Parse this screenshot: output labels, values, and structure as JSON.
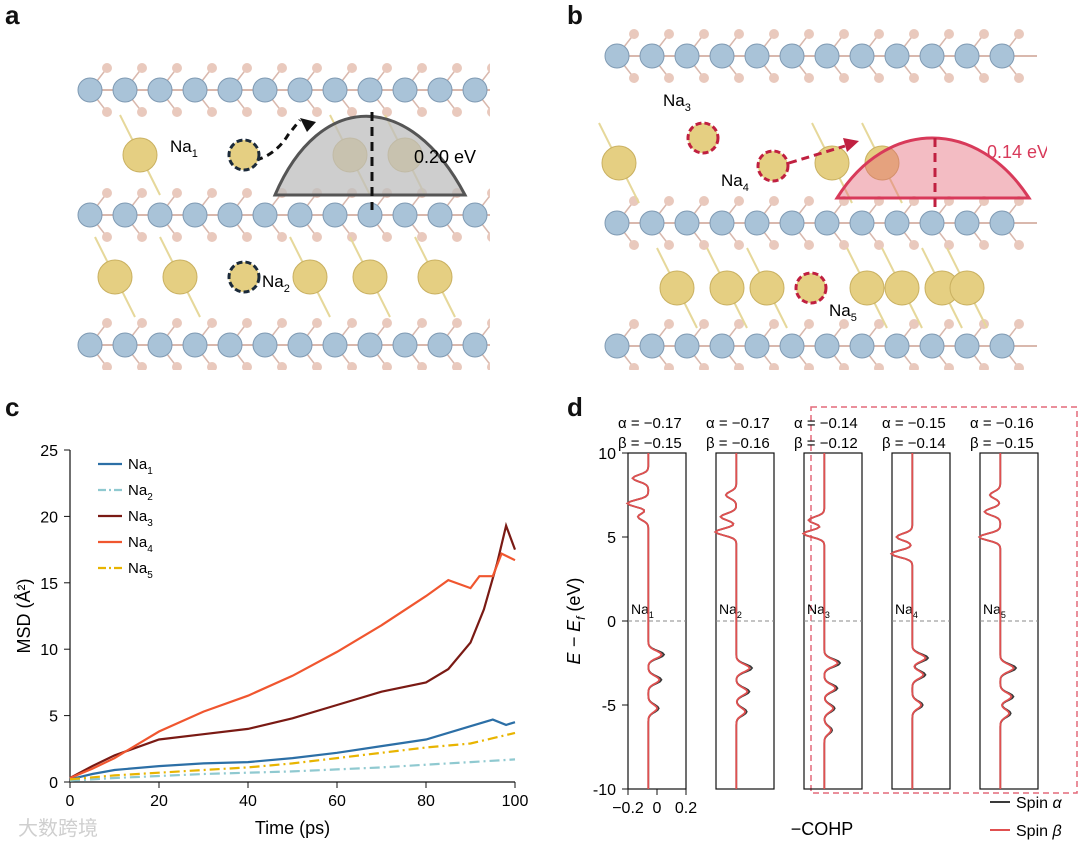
{
  "panels": {
    "a": {
      "label": "a",
      "na1": "Na",
      "na1_sub": "1",
      "na2": "Na",
      "na2_sub": "2",
      "barrier": "0.20 eV"
    },
    "b": {
      "label": "b",
      "na3": "Na",
      "na3_sub": "3",
      "na4": "Na",
      "na4_sub": "4",
      "na5": "Na",
      "na5_sub": "5",
      "barrier": "0.14 eV"
    },
    "c": {
      "label": "c"
    },
    "d": {
      "label": "d"
    }
  },
  "colors": {
    "lattice_blue": "#a9c3d8",
    "lattice_pink": "#e9c9bd",
    "na_gold": "#e5cf82",
    "barrier_gray": "#bdbdbd",
    "barrier_red": "#e46a7a",
    "na1": "#2c6fa6",
    "na2": "#8fc9d0",
    "na3": "#7a1a14",
    "na4": "#f0562f",
    "na5": "#e8b400",
    "spin_alpha": "#3a3a3a",
    "spin_beta": "#e05050"
  },
  "chart_data": [
    {
      "type": "line",
      "title": "",
      "xlabel": "Time (ps)",
      "ylabel": "MSD (Å²)",
      "xlim": [
        0,
        100
      ],
      "ylim": [
        0,
        25
      ],
      "xticks": [
        0,
        20,
        40,
        60,
        80,
        100
      ],
      "yticks": [
        0,
        5,
        10,
        15,
        20,
        25
      ],
      "legend_position": "top-left",
      "series": [
        {
          "name": "Na",
          "sub": "1",
          "style": "solid",
          "color": "#2c6fa6",
          "x": [
            0,
            5,
            10,
            20,
            30,
            40,
            50,
            60,
            70,
            80,
            90,
            95,
            98,
            100
          ],
          "y": [
            0.2,
            0.6,
            0.9,
            1.2,
            1.4,
            1.5,
            1.8,
            2.2,
            2.7,
            3.2,
            4.2,
            4.7,
            4.3,
            4.5
          ]
        },
        {
          "name": "Na",
          "sub": "2",
          "style": "dashdot",
          "color": "#8fc9d0",
          "x": [
            0,
            10,
            20,
            30,
            40,
            50,
            60,
            70,
            80,
            90,
            100
          ],
          "y": [
            0.1,
            0.3,
            0.45,
            0.6,
            0.7,
            0.8,
            0.95,
            1.1,
            1.3,
            1.5,
            1.7
          ]
        },
        {
          "name": "Na",
          "sub": "3",
          "style": "solid",
          "color": "#7a1a14",
          "x": [
            0,
            5,
            10,
            20,
            30,
            40,
            50,
            60,
            70,
            80,
            85,
            90,
            93,
            96,
            98,
            100
          ],
          "y": [
            0.3,
            1.2,
            2.0,
            3.2,
            3.6,
            4.0,
            4.8,
            5.8,
            6.8,
            7.5,
            8.5,
            10.5,
            13.0,
            16.5,
            19.3,
            17.5
          ]
        },
        {
          "name": "Na",
          "sub": "4",
          "style": "solid",
          "color": "#f0562f",
          "x": [
            0,
            5,
            10,
            20,
            30,
            40,
            50,
            60,
            70,
            80,
            85,
            90,
            92,
            95,
            97,
            100
          ],
          "y": [
            0.3,
            1.0,
            1.8,
            3.8,
            5.3,
            6.5,
            8.0,
            9.8,
            11.8,
            14.0,
            15.2,
            14.6,
            15.5,
            15.5,
            17.2,
            16.7
          ]
        },
        {
          "name": "Na",
          "sub": "5",
          "style": "dashdot",
          "color": "#e8b400",
          "x": [
            0,
            10,
            20,
            30,
            40,
            50,
            60,
            70,
            80,
            90,
            95,
            100
          ],
          "y": [
            0.2,
            0.5,
            0.7,
            0.9,
            1.1,
            1.4,
            1.8,
            2.2,
            2.6,
            2.9,
            3.3,
            3.7
          ]
        }
      ]
    },
    {
      "type": "line",
      "title": "",
      "xlabel": "−COHP",
      "ylabel": "E − E",
      "ylabel_sub": "f",
      "ylabel_unit": " (eV)",
      "ylim": [
        -10,
        10
      ],
      "xlim": [
        -0.2,
        0.2
      ],
      "xticks": [
        -0.2,
        0,
        0.2
      ],
      "xtick_labels": [
        "−0.2",
        "0",
        "0.2"
      ],
      "yticks": [
        10,
        5,
        0,
        -5,
        -10
      ],
      "ytick_labels": [
        "10",
        "5",
        "0",
        "-5",
        "-10"
      ],
      "legend": [
        {
          "label": "Spin ",
          "greek": "α",
          "color": "#3a3a3a"
        },
        {
          "label": "Spin ",
          "greek": "β",
          "color": "#e05050"
        }
      ],
      "panels": [
        {
          "name": "Na",
          "sub": "1",
          "alpha_label": "α = −0.17",
          "beta_label": "β = −0.15",
          "pos_peaks": [
            7.0,
            8.5,
            6.2
          ],
          "neg_peaks": [
            -2.0,
            -3.5,
            -5.2
          ]
        },
        {
          "name": "Na",
          "sub": "2",
          "alpha_label": "α = −0.17",
          "beta_label": "β = −0.16",
          "pos_peaks": [
            5.3,
            6.2,
            7.5
          ],
          "neg_peaks": [
            -2.8,
            -4.2,
            -5.4
          ]
        },
        {
          "name": "Na",
          "sub": "3",
          "alpha_label": "α = −0.14",
          "beta_label": "β = −0.12",
          "pos_peaks": [
            5.2,
            6.0
          ],
          "neg_peaks": [
            -2.5,
            -4.0,
            -5.2,
            -6.5
          ]
        },
        {
          "name": "Na",
          "sub": "4",
          "alpha_label": "α = −0.15",
          "beta_label": "β = −0.14",
          "pos_peaks": [
            4.0,
            5.0
          ],
          "neg_peaks": [
            -2.2,
            -3.2,
            -5.0
          ]
        },
        {
          "name": "Na",
          "sub": "5",
          "alpha_label": "α = −0.16",
          "beta_label": "β = −0.15",
          "pos_peaks": [
            5.0,
            6.5,
            7.5
          ],
          "neg_peaks": [
            -2.8,
            -4.5,
            -5.5
          ]
        }
      ]
    }
  ],
  "watermark": "大数跨境"
}
